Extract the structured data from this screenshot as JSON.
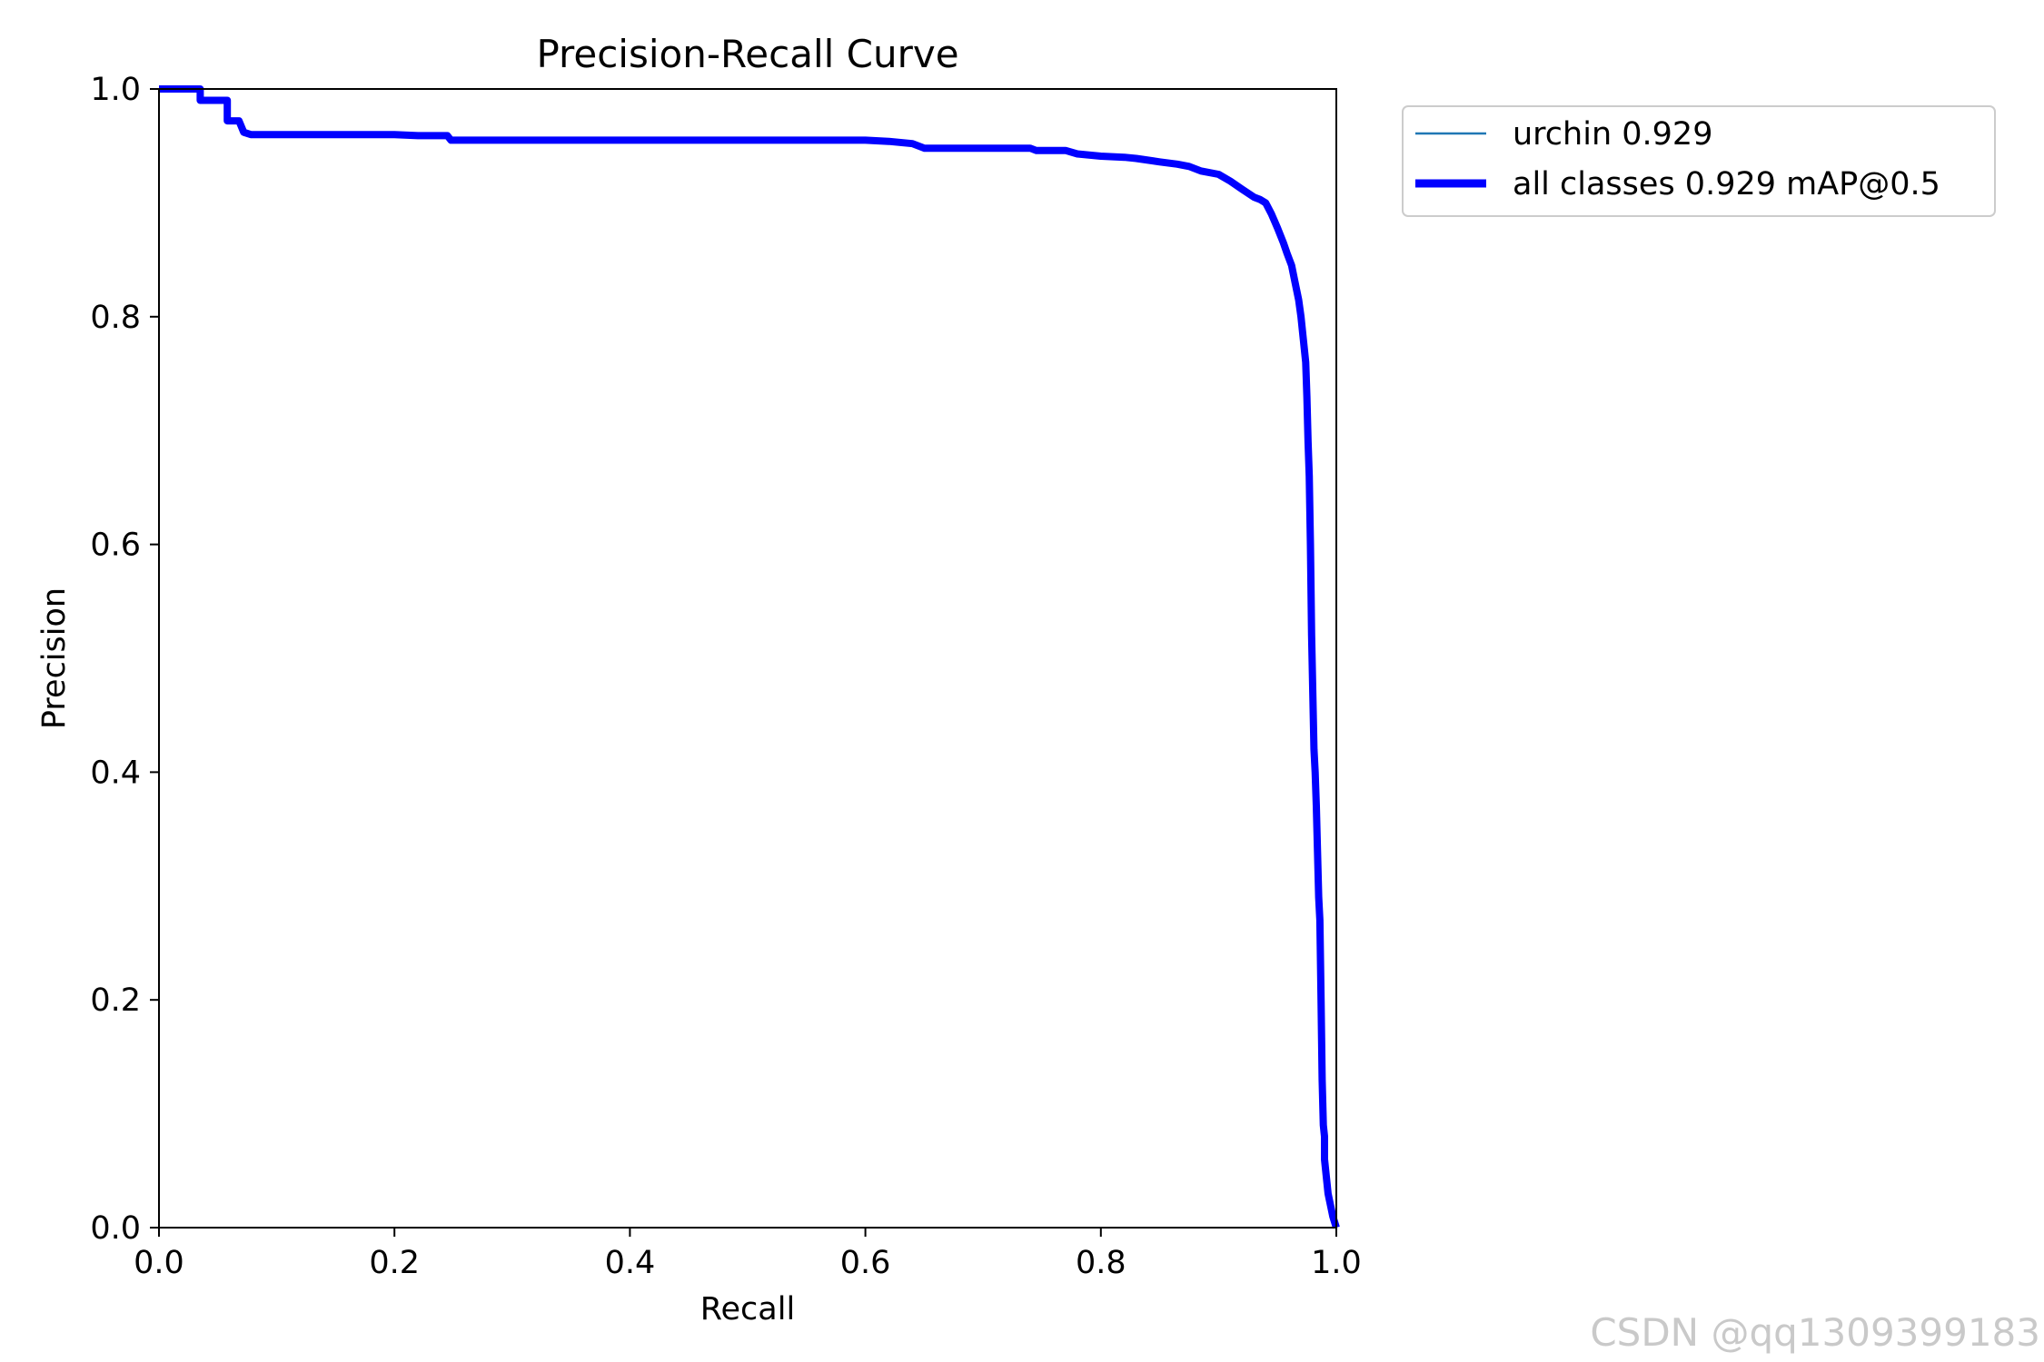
{
  "chart_data": {
    "type": "line",
    "title": "Precision-Recall Curve",
    "xlabel": "Recall",
    "ylabel": "Precision",
    "xlim": [
      0,
      1
    ],
    "ylim": [
      0,
      1
    ],
    "xticks": [
      "0.0",
      "0.2",
      "0.4",
      "0.6",
      "0.8",
      "1.0"
    ],
    "yticks": [
      "0.0",
      "0.2",
      "0.4",
      "0.6",
      "0.8",
      "1.0"
    ],
    "grid": false,
    "legend_position": "outside-top-right",
    "series": [
      {
        "name": "urchin 0.929",
        "color": "#1f77b4",
        "style": "thin",
        "x": [
          0.0,
          0.035,
          0.035,
          0.058,
          0.058,
          0.068,
          0.072,
          0.078,
          0.1,
          0.2,
          0.22,
          0.245,
          0.248,
          0.3,
          0.4,
          0.5,
          0.6,
          0.62,
          0.64,
          0.65,
          0.7,
          0.74,
          0.745,
          0.77,
          0.78,
          0.8,
          0.82,
          0.83,
          0.85,
          0.865,
          0.875,
          0.885,
          0.9,
          0.91,
          0.92,
          0.93,
          0.935,
          0.94,
          0.945,
          0.95,
          0.955,
          0.958,
          0.962,
          0.965,
          0.968,
          0.97,
          0.972,
          0.974,
          0.975,
          0.976,
          0.977,
          0.978,
          0.979,
          0.98,
          0.981,
          0.982,
          0.983,
          0.984,
          0.985,
          0.986,
          0.987,
          0.988,
          0.989,
          0.99,
          0.99,
          0.991,
          0.992,
          0.993,
          0.995,
          0.997,
          1.0
        ],
        "y": [
          1.0,
          1.0,
          0.99,
          0.99,
          0.972,
          0.972,
          0.962,
          0.96,
          0.96,
          0.96,
          0.959,
          0.959,
          0.955,
          0.955,
          0.955,
          0.955,
          0.955,
          0.954,
          0.952,
          0.948,
          0.948,
          0.948,
          0.946,
          0.946,
          0.943,
          0.941,
          0.94,
          0.939,
          0.936,
          0.934,
          0.932,
          0.928,
          0.925,
          0.919,
          0.912,
          0.905,
          0.903,
          0.9,
          0.89,
          0.878,
          0.865,
          0.856,
          0.845,
          0.83,
          0.815,
          0.8,
          0.78,
          0.76,
          0.73,
          0.69,
          0.66,
          0.6,
          0.52,
          0.47,
          0.42,
          0.4,
          0.37,
          0.33,
          0.29,
          0.27,
          0.2,
          0.13,
          0.09,
          0.08,
          0.06,
          0.05,
          0.04,
          0.03,
          0.02,
          0.01,
          0.0
        ]
      },
      {
        "name": "all classes 0.929 mAP@0.5",
        "color": "#0000ff",
        "style": "thick",
        "x": [
          0.0,
          0.035,
          0.035,
          0.058,
          0.058,
          0.068,
          0.072,
          0.078,
          0.1,
          0.2,
          0.22,
          0.245,
          0.248,
          0.3,
          0.4,
          0.5,
          0.6,
          0.62,
          0.64,
          0.65,
          0.7,
          0.74,
          0.745,
          0.77,
          0.78,
          0.8,
          0.82,
          0.83,
          0.85,
          0.865,
          0.875,
          0.885,
          0.9,
          0.91,
          0.92,
          0.93,
          0.935,
          0.94,
          0.945,
          0.95,
          0.955,
          0.958,
          0.962,
          0.965,
          0.968,
          0.97,
          0.972,
          0.974,
          0.975,
          0.976,
          0.977,
          0.978,
          0.979,
          0.98,
          0.981,
          0.982,
          0.983,
          0.984,
          0.985,
          0.986,
          0.987,
          0.988,
          0.989,
          0.99,
          0.99,
          0.991,
          0.992,
          0.993,
          0.995,
          0.997,
          1.0
        ],
        "y": [
          1.0,
          1.0,
          0.99,
          0.99,
          0.972,
          0.972,
          0.962,
          0.96,
          0.96,
          0.96,
          0.959,
          0.959,
          0.955,
          0.955,
          0.955,
          0.955,
          0.955,
          0.954,
          0.952,
          0.948,
          0.948,
          0.948,
          0.946,
          0.946,
          0.943,
          0.941,
          0.94,
          0.939,
          0.936,
          0.934,
          0.932,
          0.928,
          0.925,
          0.919,
          0.912,
          0.905,
          0.903,
          0.9,
          0.89,
          0.878,
          0.865,
          0.856,
          0.845,
          0.83,
          0.815,
          0.8,
          0.78,
          0.76,
          0.73,
          0.69,
          0.66,
          0.6,
          0.52,
          0.47,
          0.42,
          0.4,
          0.37,
          0.33,
          0.29,
          0.27,
          0.2,
          0.13,
          0.09,
          0.08,
          0.06,
          0.05,
          0.04,
          0.03,
          0.02,
          0.01,
          0.0
        ]
      }
    ]
  },
  "watermark": "CSDN @qq1309399183"
}
